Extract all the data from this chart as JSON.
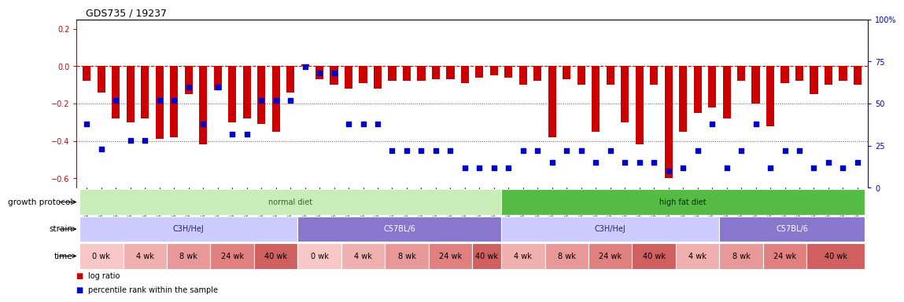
{
  "title": "GDS735 / 19237",
  "samples": [
    "GSM26750",
    "GSM26781",
    "GSM26795",
    "GSM26756",
    "GSM26782",
    "GSM26796",
    "GSM26762",
    "GSM26783",
    "GSM26797",
    "GSM26763",
    "GSM26784",
    "GSM26798",
    "GSM26764",
    "GSM26785",
    "GSM26799",
    "GSM26751",
    "GSM26757",
    "GSM26786",
    "GSM26752",
    "GSM26758",
    "GSM26787",
    "GSM26753",
    "GSM26759",
    "GSM26788",
    "GSM26754",
    "GSM26760",
    "GSM26789",
    "GSM26755",
    "GSM26761",
    "GSM26790",
    "GSM26765",
    "GSM26774",
    "GSM26791",
    "GSM26766",
    "GSM26775",
    "GSM26792",
    "GSM26767",
    "GSM26776",
    "GSM26793",
    "GSM26768",
    "GSM26777",
    "GSM26794",
    "GSM26769",
    "GSM26773",
    "GSM26800",
    "GSM26770",
    "GSM26778",
    "GSM26801",
    "GSM26771",
    "GSM26779",
    "GSM26802",
    "GSM26772",
    "GSM26780",
    "GSM26803"
  ],
  "log_ratio": [
    -0.08,
    -0.14,
    -0.28,
    -0.3,
    -0.28,
    -0.39,
    -0.38,
    -0.15,
    -0.42,
    -0.13,
    -0.3,
    -0.28,
    -0.31,
    -0.35,
    -0.14,
    0.01,
    -0.07,
    -0.1,
    -0.12,
    -0.09,
    -0.12,
    -0.08,
    -0.08,
    -0.08,
    -0.07,
    -0.07,
    -0.09,
    -0.06,
    -0.05,
    -0.06,
    -0.1,
    -0.08,
    -0.38,
    -0.07,
    -0.1,
    -0.35,
    -0.1,
    -0.3,
    -0.42,
    -0.1,
    -0.6,
    -0.35,
    -0.25,
    -0.22,
    -0.28,
    -0.08,
    -0.2,
    -0.32,
    -0.09,
    -0.08,
    -0.15,
    -0.1,
    -0.08,
    -0.1
  ],
  "percentile": [
    38,
    23,
    52,
    28,
    28,
    52,
    52,
    60,
    38,
    60,
    32,
    32,
    52,
    52,
    52,
    72,
    68,
    68,
    38,
    38,
    38,
    22,
    22,
    22,
    22,
    22,
    12,
    12,
    12,
    12,
    22,
    22,
    15,
    22,
    22,
    15,
    22,
    15,
    15,
    15,
    10,
    12,
    22,
    38,
    12,
    22,
    38,
    12,
    22,
    22,
    12,
    15,
    12,
    15
  ],
  "ylim_left": [
    -0.65,
    0.25
  ],
  "ylim_right": [
    0,
    100
  ],
  "yticks_left": [
    0.2,
    0.0,
    -0.2,
    -0.4,
    -0.6
  ],
  "yticks_right": [
    100,
    75,
    50,
    25,
    0
  ],
  "bar_color": "#cc0000",
  "dot_color": "#0000cc",
  "growth_protocol_label": "growth protocol",
  "strain_label": "strain",
  "time_label": "time",
  "diet_groups": [
    {
      "label": "normal diet",
      "start": 0,
      "end": 29,
      "color": "#c8edb8",
      "text_color": "#336633"
    },
    {
      "label": "high fat diet",
      "start": 29,
      "end": 54,
      "color": "#55bb44",
      "text_color": "#003300"
    }
  ],
  "strain_groups": [
    {
      "label": "C3H/HeJ",
      "start": 0,
      "end": 15,
      "color": "#ccccff",
      "text_color": "#222266"
    },
    {
      "label": "C57BL/6",
      "start": 15,
      "end": 29,
      "color": "#8877cc",
      "text_color": "#ffffff"
    },
    {
      "label": "C3H/HeJ",
      "start": 29,
      "end": 44,
      "color": "#ccccff",
      "text_color": "#222266"
    },
    {
      "label": "C57BL/6",
      "start": 44,
      "end": 54,
      "color": "#8877cc",
      "text_color": "#ffffff"
    }
  ],
  "time_groups": [
    {
      "label": "0 wk",
      "start": 0,
      "end": 3,
      "color": "#f8c8c8"
    },
    {
      "label": "4 wk",
      "start": 3,
      "end": 6,
      "color": "#f0b0b0"
    },
    {
      "label": "8 wk",
      "start": 6,
      "end": 9,
      "color": "#e89898"
    },
    {
      "label": "24 wk",
      "start": 9,
      "end": 12,
      "color": "#e08080"
    },
    {
      "label": "40 wk",
      "start": 12,
      "end": 15,
      "color": "#d06060"
    },
    {
      "label": "0 wk",
      "start": 15,
      "end": 18,
      "color": "#f8c8c8"
    },
    {
      "label": "4 wk",
      "start": 18,
      "end": 21,
      "color": "#f0b0b0"
    },
    {
      "label": "8 wk",
      "start": 21,
      "end": 24,
      "color": "#e89898"
    },
    {
      "label": "24 wk",
      "start": 24,
      "end": 27,
      "color": "#e08080"
    },
    {
      "label": "40 wk",
      "start": 27,
      "end": 29,
      "color": "#d06060"
    },
    {
      "label": "4 wk",
      "start": 29,
      "end": 32,
      "color": "#f0b0b0"
    },
    {
      "label": "8 wk",
      "start": 32,
      "end": 35,
      "color": "#e89898"
    },
    {
      "label": "24 wk",
      "start": 35,
      "end": 38,
      "color": "#e08080"
    },
    {
      "label": "40 wk",
      "start": 38,
      "end": 41,
      "color": "#d06060"
    },
    {
      "label": "4 wk",
      "start": 41,
      "end": 44,
      "color": "#f0b0b0"
    },
    {
      "label": "8 wk",
      "start": 44,
      "end": 47,
      "color": "#e89898"
    },
    {
      "label": "24 wk",
      "start": 47,
      "end": 50,
      "color": "#e08080"
    },
    {
      "label": "40 wk",
      "start": 50,
      "end": 54,
      "color": "#d06060"
    }
  ],
  "legend_items": [
    {
      "label": "log ratio",
      "color": "#cc0000"
    },
    {
      "label": "percentile rank within the sample",
      "color": "#0000cc"
    }
  ]
}
